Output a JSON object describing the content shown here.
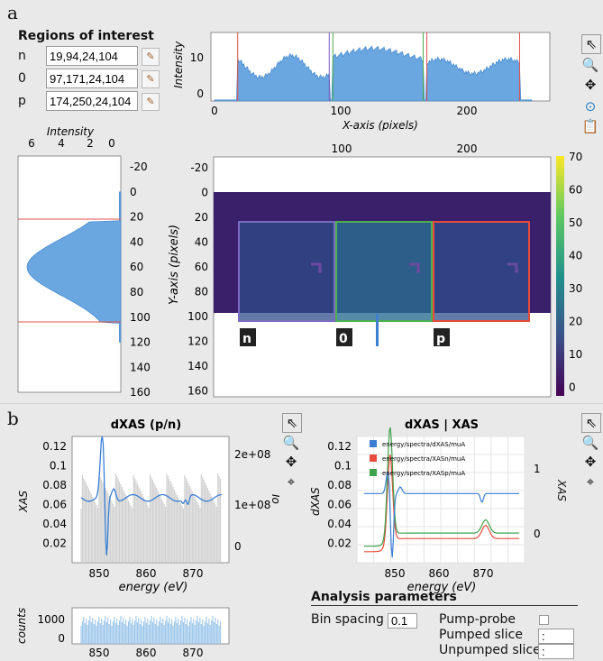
{
  "panel_a": {
    "label": "a"
  },
  "panel_b": {
    "label": "b"
  },
  "roi": {
    "title": "Regions of interest",
    "rows": [
      {
        "name": "n",
        "value": "19,94,24,104"
      },
      {
        "name": "0",
        "value": "97,171,24,104"
      },
      {
        "name": "p",
        "value": "174,250,24,104"
      }
    ]
  },
  "top_plot": {
    "ylabel": "Intensity",
    "xlabel": "X-axis (pixels)",
    "yticks": [
      "0",
      "10"
    ],
    "xticks": [
      "0",
      "100",
      "200"
    ],
    "markers": [
      {
        "x": 19,
        "color": "#e05050"
      },
      {
        "x": 94,
        "color": "#7a5cc0"
      },
      {
        "x": 97,
        "color": "#4caf50"
      },
      {
        "x": 171,
        "color": "#4caf50"
      },
      {
        "x": 174,
        "color": "#e05050"
      },
      {
        "x": 250,
        "color": "#e05050"
      }
    ]
  },
  "left_plot": {
    "xlabel": "Intensity",
    "xticks": [
      "6",
      "4",
      "2",
      "0"
    ],
    "yticks": [
      "-20",
      "0",
      "20",
      "40",
      "60",
      "80",
      "100",
      "120",
      "140",
      "160"
    ],
    "markers": [
      {
        "y": 24,
        "color": "#e05050"
      },
      {
        "y": 104,
        "color": "#e05050"
      }
    ]
  },
  "image_plot": {
    "ylabel": "Y-axis (pixels)",
    "xticks": [
      "100",
      "200"
    ],
    "yticks": [
      "-20",
      "0",
      "20",
      "40",
      "60",
      "80",
      "100",
      "120",
      "140",
      "160"
    ],
    "colorbar_ticks": [
      "70",
      "60",
      "50",
      "40",
      "30",
      "20",
      "10",
      "0"
    ],
    "regions": [
      {
        "label": "n",
        "color": "#7a6cc0"
      },
      {
        "label": "0",
        "color": "#4caf50"
      },
      {
        "label": "p",
        "color": "#e74c3c"
      }
    ]
  },
  "toolbar_a": {
    "icons": [
      "pointer-icon",
      "zoom-icon",
      "pan-icon",
      "reset-icon",
      "export-icon"
    ]
  },
  "dxas_plot": {
    "title": "dXAS (p/n)",
    "ylabel": "XAS",
    "ylabel_right": "Io",
    "xlabel": "energy (eV)",
    "yticks": [
      "0.12",
      "0.1",
      "0.08",
      "0.06",
      "0.04",
      "0.02"
    ],
    "yticks_right": [
      "2e+08",
      "1e+08",
      "0"
    ],
    "xticks": [
      "850",
      "860",
      "870"
    ]
  },
  "counts_plot": {
    "ylabel": "counts",
    "yticks": [
      "1000",
      "0"
    ],
    "xticks": [
      "850",
      "860",
      "870"
    ]
  },
  "xas_plot": {
    "title": "dXAS | XAS",
    "ylabel": "dXAS",
    "ylabel_right": "XAS",
    "xlabel": "energy (eV)",
    "yticks": [
      "0.12",
      "0.1",
      "0.08",
      "0.06",
      "0.04",
      "0.02"
    ],
    "yticks_right": [
      "1",
      "0"
    ],
    "xticks": [
      "850",
      "860",
      "870"
    ],
    "legend": [
      {
        "name": "energy/spectra/dXAS/muA",
        "color": "#3a7fd5"
      },
      {
        "name": "energy/spectra/XASn/muA",
        "color": "#e74c3c"
      },
      {
        "name": "energy/spectra/XASp/muA",
        "color": "#3fa34d"
      }
    ]
  },
  "analysis": {
    "title": "Analysis parameters",
    "bin_spacing_label": "Bin spacing",
    "bin_spacing_value": "0.1",
    "pump_probe_label": "Pump-probe",
    "pumped_slice_label": "Pumped slice",
    "pumped_slice_value": ":",
    "unpumped_slice_label": "Unpumped slice",
    "unpumped_slice_value": ":"
  }
}
